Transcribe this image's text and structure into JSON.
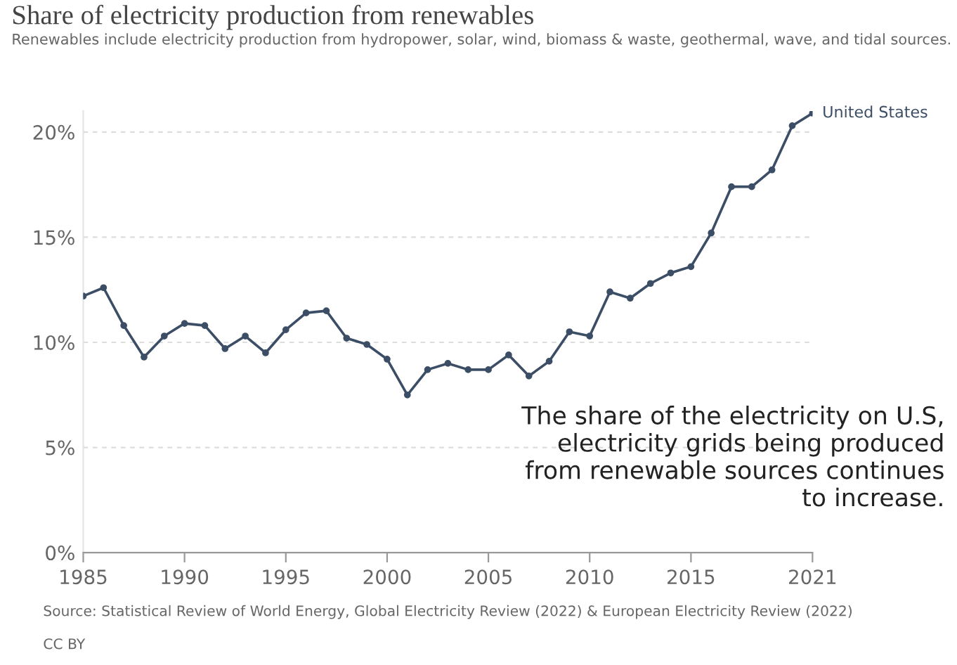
{
  "chart_data": {
    "type": "line",
    "title": "Share of electricity production from renewables",
    "subtitle": "Renewables include electricity production from hydropower, solar, wind, biomass & waste, geothermal, wave, and tidal sources.",
    "x": [
      1985,
      1986,
      1987,
      1988,
      1989,
      1990,
      1991,
      1992,
      1993,
      1994,
      1995,
      1996,
      1997,
      1998,
      1999,
      2000,
      2001,
      2002,
      2003,
      2004,
      2005,
      2006,
      2007,
      2008,
      2009,
      2010,
      2011,
      2012,
      2013,
      2014,
      2015,
      2016,
      2017,
      2018,
      2019,
      2020,
      2021
    ],
    "series": [
      {
        "name": "United States",
        "color": "#3c4e66",
        "values": [
          12.2,
          12.6,
          10.8,
          9.3,
          10.3,
          10.9,
          10.8,
          9.7,
          10.3,
          9.5,
          10.6,
          11.4,
          11.5,
          10.2,
          9.9,
          9.2,
          7.5,
          8.7,
          9.0,
          8.7,
          8.7,
          9.4,
          8.4,
          9.1,
          10.5,
          10.3,
          12.4,
          12.1,
          12.8,
          13.3,
          13.6,
          15.2,
          17.4,
          17.4,
          18.2,
          20.3,
          20.9
        ]
      }
    ],
    "xlim": [
      1985,
      2021
    ],
    "xticks": [
      1985,
      1990,
      1995,
      2000,
      2005,
      2010,
      2015,
      2021
    ],
    "ylim": [
      0,
      21
    ],
    "yticks": [
      {
        "value": 0,
        "label": "0%"
      },
      {
        "value": 5,
        "label": "5%"
      },
      {
        "value": 10,
        "label": "10%"
      },
      {
        "value": 15,
        "label": "15%"
      },
      {
        "value": 20,
        "label": "20%"
      }
    ],
    "grid": "y",
    "legend": false,
    "marker": "circle",
    "line_style": "solid",
    "annotations": [
      "The share of the electricity on U.S, electricity grids being produced from renewable sources continues to increase.",
      "Source: Statistical Review of World Energy, Global Electricity Review (2022) & European Electricity Review (2022)",
      "CC BY"
    ]
  }
}
